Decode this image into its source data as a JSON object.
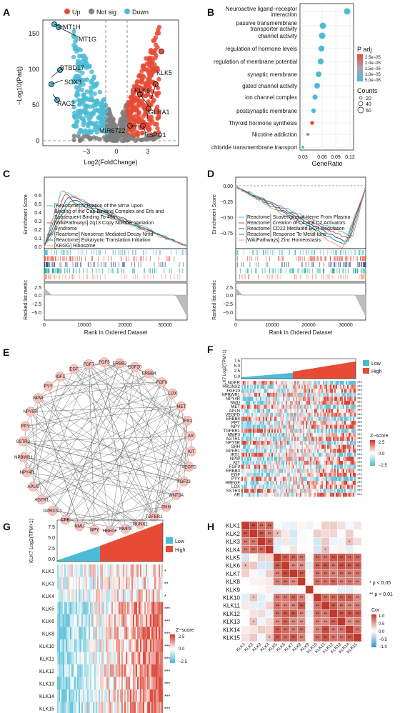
{
  "panels": {
    "A": {
      "letter": "A",
      "legend": {
        "up": "Up",
        "notsig": "Not sig",
        "down": "Down"
      },
      "ylabel": "−Log10(Padj)",
      "xlabel": "Log2(FoldChange)",
      "yticks": [
        "0",
        "50",
        "100",
        "150"
      ],
      "xticks": [
        "−3",
        "0",
        "3"
      ],
      "labels": {
        "mt1h": "MT1H",
        "mt1g": "MT1G",
        "btbd17": "BTBD17",
        "sox3": "SOX3",
        "rag2": "RAG2",
        "klk5": "KLK5",
        "klk6": "KLK6",
        "glra1": "GLRA1",
        "mir6722": "MIR6722",
        "rspo1": "RSPO1"
      },
      "colors": {
        "up": "#e64b35",
        "notsig": "#7f7f7f",
        "down": "#4dbbd5"
      }
    },
    "B": {
      "letter": "B",
      "terms": [
        "Neuroactive ligand−receptor interaction",
        "passive transmembrane transporter activity",
        "channel activity",
        "regulation of hormone levels",
        "regulation of membrane potential",
        "synaptic membrane",
        "gated channel activity",
        "ion channel complex",
        "postsynaptic membrane",
        "Thyroid hormone synthesis",
        "Nicotine addiction",
        "chloride transmembrane transport"
      ],
      "xlabel": "GeneRatio",
      "xticks": [
        "0.03",
        "0.06",
        "0.09",
        "0.12"
      ],
      "padj_title": "P adj",
      "padj_ticks": [
        "2.5e−05",
        "2.0e−05",
        "1.5e−05",
        "1.0e−05",
        "5.0e−06"
      ],
      "counts_title": "Counts",
      "counts_ticks": [
        "20",
        "40",
        "60"
      ]
    },
    "C": {
      "letter": "C",
      "ylabel": "Enrichment Score",
      "ylabel2": "Ranked list metric",
      "xlabel": "Rank in Ordered Dataset",
      "yticks": [
        "0.0",
        "0.1",
        "0.2",
        "0.3",
        "0.4",
        "0.5",
        "0.6"
      ],
      "yticks2": [
        "2.5",
        "0.0",
        "−2.5",
        "−5.0"
      ],
      "xticks": [
        "0",
        "10000",
        "20000",
        "30000"
      ],
      "legend": [
        "[Reactome] Activation of the Mrna Upon Binding of the Cap Binding Complex and Eifs and Subsequent Binding To 43s",
        "[WikiPathways] 2q13 Copy Number Variation Syndrome",
        "[Reactome] Nonsense Mediated Decay Nmd",
        "[Reactome] Eukaryotic Translation Initiation",
        "[KEGG] Ribosome"
      ]
    },
    "D": {
      "letter": "D",
      "ylabel": "Enrichment Score",
      "ylabel2": "Ranked list metric",
      "xlabel": "Rank in Ordered Dataset",
      "yticks": [
        "0.00",
        "−0.25",
        "−0.50",
        "−0.75"
      ],
      "yticks2": [
        "2.5",
        "0.0",
        "−2.5",
        "−5.0"
      ],
      "xticks": [
        "0",
        "10000",
        "20000",
        "30000"
      ],
      "legend": [
        "[Reactome] Scavenging of Heme From Plasma",
        "[Reactome] Creation of C4 and C2 Activators",
        "[Reactome] CD22 Mediated BCR Regulation",
        "[Reactome] Response To Metal Ions",
        "[WikiPathways] Zinc Homeostasis"
      ]
    },
    "E": {
      "letter": "E",
      "nodes": [
        "ERBB3",
        "EGF20",
        "ERBB4",
        "FGF9",
        "LOX",
        "MET",
        "IRS1",
        "AR",
        "KIT",
        "VEGFD",
        "FGF23",
        "WNT3A",
        "SHH",
        "TGFBR1",
        "RUNX2",
        "MMP3",
        "HBEGF",
        "NPY",
        "NMU",
        "CPE",
        "GPR37L1",
        "AGTR1",
        "APLN",
        "NPY4R",
        "NPBWR1",
        "SSTR3",
        "PPY",
        "NPY5R",
        "NPW",
        "PYY",
        "IGF1",
        "EGF",
        "FGF7",
        "FGF5"
      ]
    },
    "F": {
      "letter": "F",
      "ylabel": "KLK7 Log2(TPM+1)",
      "yticks": [
        "7.5",
        "5.0",
        "2.5",
        "0.0"
      ],
      "legend": {
        "low": "Low",
        "high": "High"
      },
      "zscore_title": "Z−score",
      "zscore_ticks": [
        "2.5",
        "0.0",
        "−2.5"
      ],
      "genes": [
        "NGFR",
        "RUNX2",
        "FGF20",
        "NPBWR1",
        "NPY4R",
        "NMU",
        "MET",
        "APLN",
        "VEGFD",
        "ERBB4",
        "PPY",
        "NPY",
        "TGFBR1",
        "MMP3",
        "AGTR1",
        "NPY5R",
        "SHH",
        "GPER1",
        "IRS1",
        "NPW",
        "KIT",
        "FGF9",
        "ERBB3",
        "EGF",
        "PYY",
        "HBEGF",
        "LOX",
        "SSTR3",
        "AR"
      ],
      "sig": "***"
    },
    "G": {
      "letter": "G",
      "ylabel": "KLK7 Log2(TPM+1)",
      "yticks": [
        "7.5",
        "5.0",
        "2.5",
        "0.0"
      ],
      "legend": {
        "low": "Low",
        "high": "High"
      },
      "zscore_title": "Z−score",
      "zscore_ticks": [
        "2.5",
        "0.0",
        "−2.5"
      ],
      "genes": [
        "KLK1",
        "KLK3",
        "KLK4",
        "KLK5",
        "KLK6",
        "KLK8",
        "KLK10",
        "KLK11",
        "KLK12",
        "KLK13",
        "KLK14",
        "KLK15"
      ],
      "sigs": [
        "*",
        "**",
        "*",
        "***",
        "***",
        "***",
        "***",
        "***",
        "***",
        "***",
        "***",
        "***"
      ]
    },
    "H": {
      "letter": "H",
      "genes": [
        "KLK1",
        "KLK2",
        "KLK3",
        "KLK4",
        "KLK5",
        "KLK6",
        "KLK7",
        "KLK8",
        "KLK9",
        "KLK10",
        "KLK11",
        "KLK12",
        "KLK13",
        "KLK14",
        "KLK15"
      ],
      "note1": "* p < 0.05",
      "note2": "** p < 0.01",
      "cor_title": "Cor",
      "cor_ticks": [
        "1.0",
        "0.5",
        "0.0",
        "−0.5",
        "−1.0"
      ]
    }
  }
}
